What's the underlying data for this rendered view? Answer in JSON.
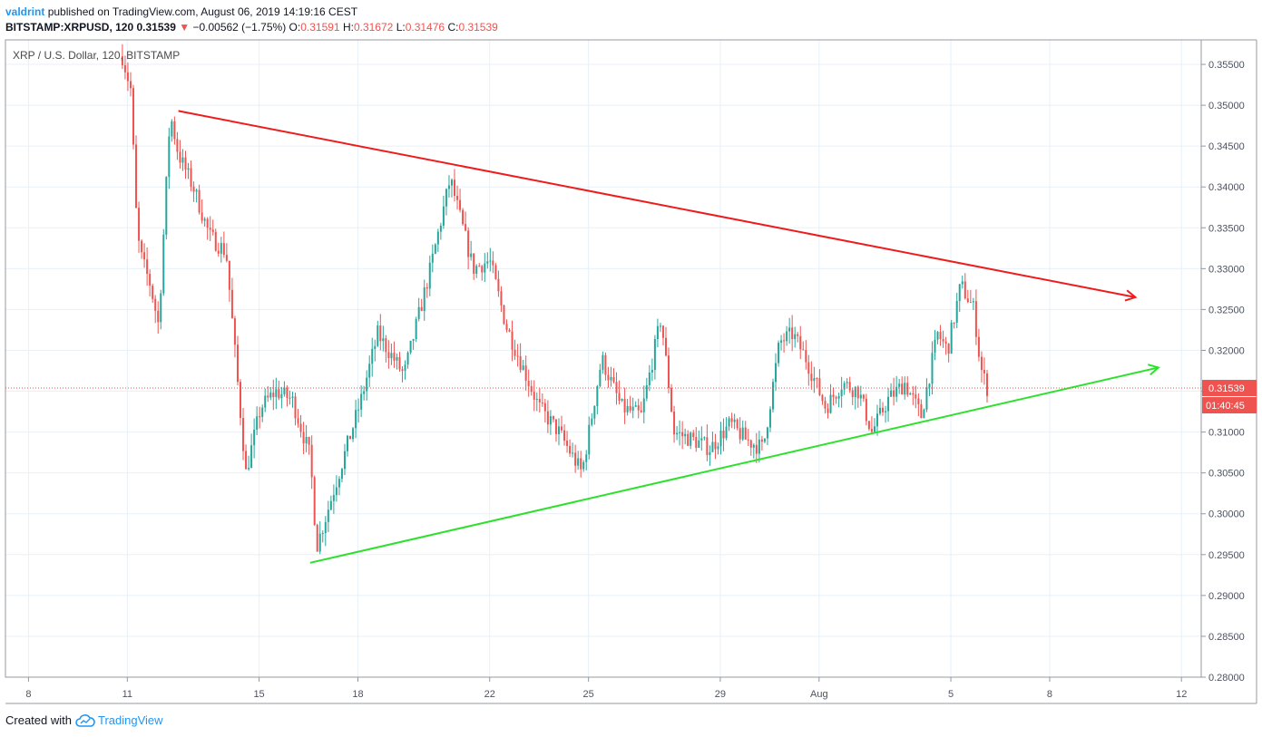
{
  "header": {
    "author": "valdrint",
    "published_text": "published on TradingView.com, August 06, 2019 14:19:16 CEST",
    "symbol": "BITSTAMP:XRPUSD, 120",
    "price": "0.31539",
    "change_arrow": "▼",
    "change": "−0.00562 (−1.75%)",
    "o_label": "O:",
    "o_value": "0.31591",
    "h_label": "H:",
    "h_value": "0.31672",
    "l_label": "L:",
    "l_value": "0.31476",
    "c_label": "C:",
    "c_value": "0.31539"
  },
  "footer": {
    "created_with": "Created with",
    "brand": "TradingView",
    "brand_icon": "tradingview-cloud-icon"
  },
  "colors": {
    "up": "#26a69a",
    "down": "#ef5350",
    "resistance": "#ee1c1c",
    "support": "#2ee02e",
    "grid": "#e8f0f8",
    "price_marker": "#ef5350"
  },
  "chart_data": {
    "type": "candlestick",
    "title": "XRP / U.S. Dollar, 120, BITSTAMP",
    "xlabel": "",
    "ylabel": "",
    "ylim": [
      0.28,
      0.358
    ],
    "xlim_days": [
      7.3,
      43.6
    ],
    "grid": true,
    "x_ticks": [
      {
        "label": "8",
        "day": 8
      },
      {
        "label": "11",
        "day": 11
      },
      {
        "label": "15",
        "day": 15
      },
      {
        "label": "18",
        "day": 18
      },
      {
        "label": "22",
        "day": 22
      },
      {
        "label": "25",
        "day": 25
      },
      {
        "label": "29",
        "day": 29
      },
      {
        "label": "Aug",
        "day": 32
      },
      {
        "label": "5",
        "day": 36
      },
      {
        "label": "8",
        "day": 39
      },
      {
        "label": "12",
        "day": 43
      }
    ],
    "y_ticks": [
      "0.35500",
      "0.35000",
      "0.34500",
      "0.34000",
      "0.33500",
      "0.33000",
      "0.32500",
      "0.32000",
      "0.31500",
      "0.31000",
      "0.30500",
      "0.30000",
      "0.29500",
      "0.29000",
      "0.28500",
      "0.28000"
    ],
    "last_price": {
      "value": 0.31539,
      "label": "0.31539",
      "countdown": "01:40:45"
    },
    "price_path_days": [
      10.85,
      11.1,
      11.3,
      11.45,
      11.7,
      11.95,
      12.3,
      12.55,
      13.0,
      13.5,
      14.0,
      14.35,
      14.6,
      15.05,
      15.5,
      16.0,
      16.55,
      16.75,
      17.2,
      18.1,
      18.6,
      19.4,
      20.2,
      20.8,
      21.5,
      22.0,
      22.5,
      23.0,
      23.5,
      24.1,
      24.8,
      25.4,
      26.0,
      26.6,
      27.2,
      27.6,
      28.2,
      28.7,
      29.3,
      29.8,
      30.3,
      30.8,
      31.2,
      31.6,
      32.2,
      32.7,
      33.2,
      33.6,
      34.1,
      34.6,
      35.1,
      35.6,
      35.9,
      36.3,
      36.7,
      36.9,
      37.1
    ],
    "price_path_values": [
      0.356,
      0.352,
      0.334,
      0.331,
      0.328,
      0.323,
      0.349,
      0.344,
      0.34,
      0.334,
      0.332,
      0.316,
      0.305,
      0.313,
      0.315,
      0.314,
      0.307,
      0.296,
      0.302,
      0.314,
      0.322,
      0.317,
      0.33,
      0.341,
      0.33,
      0.331,
      0.323,
      0.318,
      0.313,
      0.31,
      0.305,
      0.319,
      0.313,
      0.312,
      0.324,
      0.31,
      0.309,
      0.308,
      0.311,
      0.309,
      0.308,
      0.321,
      0.322,
      0.319,
      0.313,
      0.316,
      0.315,
      0.31,
      0.314,
      0.316,
      0.312,
      0.322,
      0.32,
      0.328,
      0.325,
      0.318,
      0.3154
    ],
    "trendlines": [
      {
        "name": "resistance",
        "x1_day": 12.55,
        "y1": 0.3493,
        "x2_day": 41.6,
        "y2": 0.3265,
        "arrow": true
      },
      {
        "name": "support",
        "x1_day": 16.55,
        "y1": 0.294,
        "x2_day": 42.3,
        "y2": 0.3179,
        "arrow": true
      }
    ]
  }
}
